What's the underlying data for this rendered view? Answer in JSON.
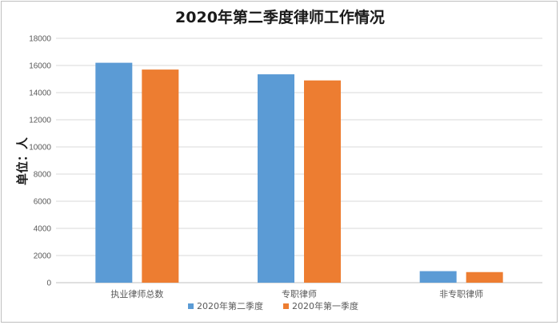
{
  "chart_data": {
    "type": "bar",
    "title": "2020年第二季度律师工作情况",
    "ylabel": "单位：人",
    "xlabel": "",
    "categories": [
      "执业律师总数",
      "专职律师",
      "非专职律师"
    ],
    "series": [
      {
        "name": "2020年第二季度",
        "values": [
          16200,
          15350,
          850
        ],
        "color": "#5b9bd5"
      },
      {
        "name": "2020年第一季度",
        "values": [
          15700,
          14900,
          780
        ],
        "color": "#ed7d31"
      }
    ],
    "ylim": [
      0,
      18000
    ],
    "yticks": [
      0,
      2000,
      4000,
      6000,
      8000,
      10000,
      12000,
      14000,
      16000,
      18000
    ],
    "grid": true,
    "legend_position": "bottom"
  }
}
